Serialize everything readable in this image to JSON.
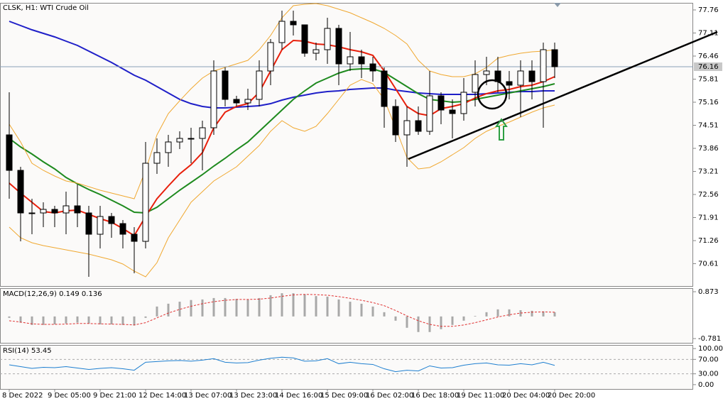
{
  "chart_data": [
    {
      "type": "candlestick",
      "title": "CLSK, H1:  WTI Crude Oil",
      "categories": [
        "8 Dec 2022",
        null,
        null,
        null,
        "9 Dec 05:00",
        null,
        null,
        null,
        "9 Dec 21:00",
        null,
        null,
        null,
        "12 Dec 14:00",
        null,
        null,
        null,
        "13 Dec 07:00",
        null,
        null,
        null,
        "13 Dec 23:00",
        null,
        null,
        null,
        "14 Dec 16:00",
        null,
        null,
        null,
        "15 Dec 09:00",
        null,
        null,
        null,
        "16 Dec 02:00",
        null,
        null,
        null,
        "16 Dec 18:00",
        null,
        null,
        null,
        "19 Dec 11:00",
        null,
        null,
        null,
        "20 Dec 04:00",
        null,
        null,
        null,
        "20 Dec 20:00"
      ],
      "open": [
        74.24,
        73.24,
        72.04,
        72.04,
        72.14,
        72.04,
        72.24,
        72.04,
        71.44,
        71.94,
        71.74,
        71.44,
        71.24,
        73.44,
        73.74,
        74.04,
        74.14,
        74.14,
        74.44,
        76.04,
        75.24,
        75.14,
        75.24,
        76.04,
        76.84,
        77.44,
        77.34,
        76.54,
        76.64,
        77.24,
        76.24,
        76.44,
        76.24,
        76.04,
        75.04,
        74.24,
        74.64,
        74.34,
        75.34,
        74.94,
        74.84,
        75.44,
        75.94,
        76.04,
        75.74,
        75.64,
        76.04,
        75.74,
        76.64
      ],
      "high": [
        75.44,
        73.34,
        72.44,
        72.34,
        72.24,
        72.64,
        72.84,
        72.24,
        72.24,
        72.04,
        71.84,
        71.64,
        74.04,
        74.14,
        74.24,
        74.34,
        74.44,
        74.64,
        76.34,
        76.14,
        75.34,
        75.54,
        76.34,
        76.94,
        77.74,
        77.74,
        77.34,
        76.84,
        77.54,
        77.34,
        77.14,
        76.64,
        76.44,
        76.14,
        75.24,
        75.04,
        75.04,
        76.04,
        75.44,
        75.24,
        75.84,
        76.34,
        76.44,
        76.44,
        76.04,
        76.34,
        76.34,
        76.84,
        76.84
      ],
      "low": [
        72.44,
        71.24,
        71.44,
        71.64,
        71.64,
        71.44,
        71.64,
        70.24,
        71.04,
        71.34,
        71.04,
        70.34,
        71.04,
        73.14,
        73.34,
        73.84,
        73.44,
        73.24,
        74.24,
        75.04,
        75.04,
        74.94,
        75.04,
        75.64,
        76.64,
        77.04,
        76.44,
        76.34,
        76.24,
        75.64,
        76.04,
        75.84,
        75.74,
        74.44,
        74.04,
        73.34,
        74.24,
        74.24,
        74.54,
        74.14,
        74.64,
        75.04,
        75.64,
        75.44,
        75.24,
        74.74,
        75.24,
        74.44,
        75.84
      ],
      "close": [
        73.24,
        72.04,
        72.04,
        72.14,
        72.04,
        72.24,
        72.04,
        71.44,
        71.94,
        71.74,
        71.44,
        71.24,
        73.44,
        73.74,
        74.04,
        74.14,
        74.14,
        74.44,
        76.04,
        75.24,
        75.14,
        75.24,
        76.04,
        76.84,
        77.44,
        77.34,
        76.54,
        76.64,
        77.24,
        76.24,
        76.44,
        76.24,
        76.04,
        75.04,
        74.24,
        74.64,
        74.34,
        75.34,
        74.94,
        74.84,
        75.44,
        75.94,
        76.04,
        75.74,
        75.64,
        76.04,
        75.74,
        76.64,
        76.16
      ],
      "up_color": "#ffffff",
      "down_color": "#000000",
      "wick_color": "#000000",
      "series": [
        {
          "color": "#1f1fc8",
          "values": [
            77.44,
            77.32,
            77.2,
            77.1,
            77.0,
            76.88,
            76.76,
            76.6,
            76.44,
            76.28,
            76.1,
            75.92,
            75.78,
            75.6,
            75.42,
            75.24,
            75.12,
            75.04,
            75.0,
            75.0,
            75.02,
            75.04,
            75.06,
            75.12,
            75.22,
            75.3,
            75.36,
            75.42,
            75.46,
            75.48,
            75.52,
            75.54,
            75.56,
            75.56,
            75.5,
            75.46,
            75.42,
            75.4,
            75.38,
            75.38,
            75.38,
            75.38,
            75.4,
            75.42,
            75.44,
            75.46,
            75.46,
            75.48,
            75.48
          ]
        },
        {
          "color": "#1e8a1e",
          "values": [
            74.14,
            73.9,
            73.7,
            73.48,
            73.28,
            73.04,
            72.86,
            72.7,
            72.56,
            72.4,
            72.24,
            72.06,
            72.04,
            72.2,
            72.44,
            72.68,
            72.9,
            73.12,
            73.36,
            73.58,
            73.82,
            74.04,
            74.34,
            74.64,
            74.94,
            75.24,
            75.48,
            75.7,
            75.84,
            75.98,
            76.08,
            76.1,
            76.1,
            76.0,
            75.8,
            75.6,
            75.4,
            75.24,
            75.2,
            75.16,
            75.18,
            75.24,
            75.3,
            75.36,
            75.42,
            75.48,
            75.54,
            75.6,
            75.68
          ]
        },
        {
          "color": "#e8200c",
          "values": [
            72.88,
            72.6,
            72.34,
            72.08,
            72.04,
            72.1,
            72.12,
            72.0,
            71.88,
            71.78,
            71.6,
            71.4,
            71.94,
            72.44,
            72.8,
            73.14,
            73.4,
            73.74,
            74.44,
            74.88,
            75.04,
            75.12,
            75.44,
            76.04,
            76.64,
            76.9,
            76.88,
            76.8,
            76.78,
            76.72,
            76.64,
            76.58,
            76.48,
            76.04,
            75.54,
            75.04,
            74.84,
            74.78,
            74.98,
            75.04,
            75.12,
            75.28,
            75.4,
            75.48,
            75.52,
            75.6,
            75.64,
            75.74,
            75.88
          ]
        },
        {
          "color": "#f0a830",
          "values": [
            74.54,
            74.04,
            73.44,
            73.24,
            73.08,
            72.94,
            72.88,
            72.78,
            72.68,
            72.6,
            72.52,
            72.44,
            73.24,
            74.24,
            74.84,
            75.2,
            75.54,
            75.84,
            76.04,
            76.14,
            76.24,
            76.34,
            76.64,
            77.04,
            77.54,
            77.88,
            77.92,
            77.94,
            77.88,
            77.78,
            77.68,
            77.54,
            77.4,
            77.24,
            77.04,
            76.8,
            76.34,
            76.04,
            75.94,
            75.88,
            75.88,
            75.96,
            76.14,
            76.4,
            76.48,
            76.54,
            76.58,
            76.6,
            76.64
          ]
        },
        {
          "color": "#f0a830",
          "values": [
            71.64,
            71.34,
            71.2,
            71.12,
            71.06,
            71.0,
            70.94,
            70.88,
            70.8,
            70.72,
            70.6,
            70.4,
            70.24,
            70.64,
            71.34,
            71.84,
            72.34,
            72.64,
            72.94,
            73.14,
            73.34,
            73.64,
            73.94,
            74.34,
            74.64,
            74.44,
            74.34,
            74.48,
            74.84,
            75.24,
            75.64,
            75.8,
            75.68,
            75.24,
            74.44,
            73.6,
            73.28,
            73.32,
            73.48,
            73.68,
            73.88,
            74.14,
            74.34,
            74.48,
            74.6,
            74.74,
            74.88,
            75.0,
            75.08
          ]
        }
      ],
      "ylim": [
        69.98,
        77.96
      ],
      "yticks": [
        77.76,
        77.11,
        76.46,
        75.81,
        75.16,
        74.51,
        73.86,
        73.21,
        72.56,
        71.91,
        71.26,
        70.61
      ],
      "current_price": 76.16,
      "current_price_color": "#8aa0b8"
    },
    {
      "type": "macd",
      "title": "MACD(12,26,9) 0.149 0.136",
      "ylim": [
        -0.781,
        0.873
      ],
      "yticks": [
        0.873,
        -0.781
      ],
      "histogram": {
        "color": "#a8a8a8",
        "values": [
          -0.05,
          -0.22,
          -0.3,
          -0.3,
          -0.28,
          -0.25,
          -0.22,
          -0.25,
          -0.28,
          -0.28,
          -0.3,
          -0.32,
          -0.05,
          0.35,
          0.45,
          0.52,
          0.58,
          0.6,
          0.65,
          0.65,
          0.62,
          0.6,
          0.65,
          0.75,
          0.82,
          0.82,
          0.78,
          0.72,
          0.7,
          0.6,
          0.52,
          0.45,
          0.35,
          0.15,
          -0.15,
          -0.4,
          -0.55,
          -0.55,
          -0.45,
          -0.3,
          -0.15,
          0.02,
          0.15,
          0.25,
          0.25,
          0.22,
          0.2,
          0.18,
          0.15
        ]
      },
      "signal": {
        "color": "#e03030",
        "values": [
          -0.15,
          -0.2,
          -0.26,
          -0.28,
          -0.28,
          -0.27,
          -0.25,
          -0.25,
          -0.26,
          -0.27,
          -0.28,
          -0.3,
          -0.22,
          -0.05,
          0.12,
          0.25,
          0.36,
          0.45,
          0.52,
          0.57,
          0.6,
          0.6,
          0.61,
          0.65,
          0.71,
          0.76,
          0.78,
          0.77,
          0.75,
          0.7,
          0.64,
          0.57,
          0.49,
          0.38,
          0.21,
          0.02,
          -0.15,
          -0.28,
          -0.35,
          -0.35,
          -0.3,
          -0.22,
          -0.12,
          -0.02,
          0.06,
          0.12,
          0.15,
          0.16,
          0.15
        ]
      }
    },
    {
      "type": "line",
      "title": "RSI(14) 53.45",
      "ylim": [
        -12,
        110
      ],
      "yticks": [
        {
          "value": 100,
          "label": "100.00"
        },
        {
          "value": 70,
          "label": "70.00"
        },
        {
          "value": 30,
          "label": "30.00"
        },
        {
          "value": 0,
          "label": "0.00"
        }
      ],
      "levels": [
        70,
        30
      ],
      "color": "#1e7fd0",
      "values": [
        55,
        50,
        45,
        48,
        47,
        50,
        46,
        42,
        45,
        47,
        44,
        40,
        62,
        64,
        66,
        67,
        65,
        68,
        72,
        62,
        60,
        61,
        68,
        73,
        76,
        74,
        65,
        66,
        72,
        58,
        62,
        58,
        56,
        44,
        36,
        40,
        38,
        52,
        46,
        47,
        54,
        58,
        60,
        55,
        54,
        58,
        55,
        62,
        53.45
      ]
    }
  ]
}
